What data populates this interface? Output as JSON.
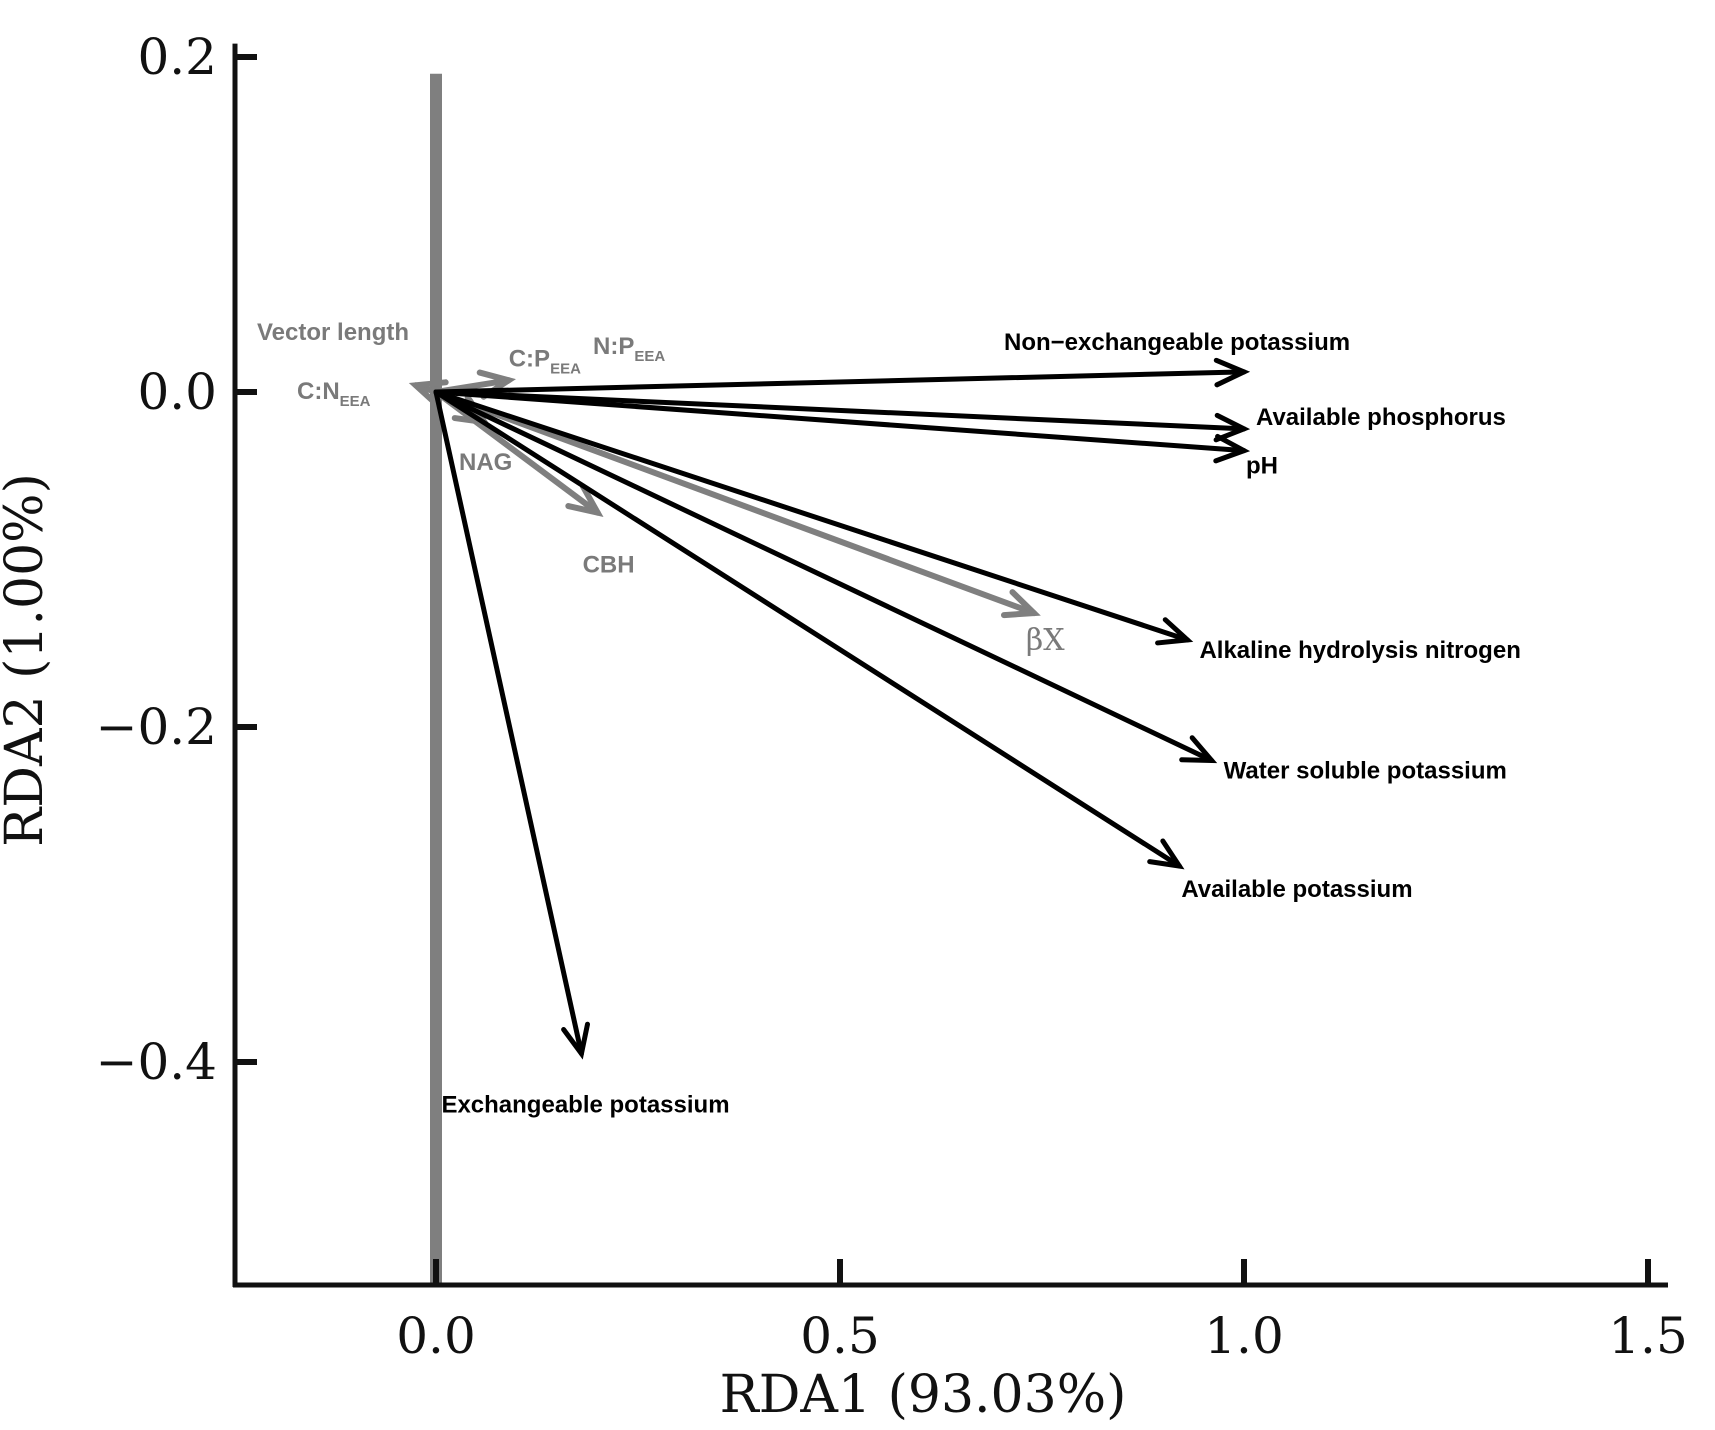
{
  "chart_data": {
    "type": "scatter",
    "subtype": "rda-biplot",
    "xlabel": "RDA1 (93.03%)",
    "ylabel": "RDA2 (1.00%)",
    "xlim": [
      -0.25,
      1.5
    ],
    "ylim": [
      -0.535,
      0.205
    ],
    "xticks": [
      {
        "value": 0.0,
        "label": "0.0"
      },
      {
        "value": 0.5,
        "label": "0.5"
      },
      {
        "value": 1.0,
        "label": "1.0"
      },
      {
        "value": 1.5,
        "label": "1.5"
      }
    ],
    "yticks": [
      {
        "value": 0.2,
        "label": "0.2"
      },
      {
        "value": 0.0,
        "label": "0.0"
      },
      {
        "value": -0.2,
        "label": "−0.2"
      },
      {
        "value": -0.4,
        "label": "−0.4"
      }
    ],
    "reference_line": {
      "x": 0.0,
      "color": "#7f7f7f"
    },
    "environmental_vectors": [
      {
        "name": "Non−exchangeable potassium",
        "x": 1.0,
        "y": 0.012
      },
      {
        "name": "Available phosphorus",
        "x": 1.0,
        "y": -0.022
      },
      {
        "name": "pH",
        "x": 1.0,
        "y": -0.035
      },
      {
        "name": "Alkaline hydrolysis nitrogen",
        "x": 0.93,
        "y": -0.148
      },
      {
        "name": "Water soluble potassium",
        "x": 0.96,
        "y": -0.22
      },
      {
        "name": "Available potassium",
        "x": 0.92,
        "y": -0.283
      },
      {
        "name": "Exchangeable potassium",
        "x": 0.18,
        "y": -0.395
      }
    ],
    "enzyme_vectors": [
      {
        "name": "βX",
        "x": 0.74,
        "y": -0.132
      },
      {
        "name": "CBH",
        "x": 0.2,
        "y": -0.072
      },
      {
        "name": "NAG",
        "x": 0.06,
        "y": -0.018
      },
      {
        "name": "C:P",
        "sub": "EEA",
        "x": 0.09,
        "y": 0.007
      },
      {
        "name": "C:N",
        "sub": "EEA",
        "x": -0.025,
        "y": 0.004
      }
    ],
    "text_labels": [
      {
        "text": "Vector length",
        "sub": ""
      },
      {
        "text": "N:P",
        "sub": "EEA"
      }
    ],
    "colors": {
      "environmental": "#000000",
      "enzyme": "#7f7f7f"
    }
  }
}
